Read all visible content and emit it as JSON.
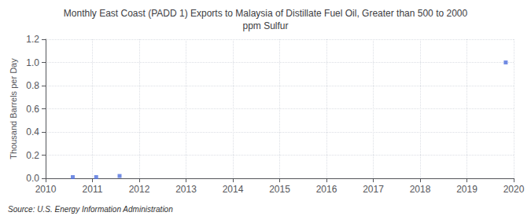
{
  "chart_data": {
    "type": "scatter",
    "title": "Monthly East Coast (PADD 1) Exports to Malaysia of Distillate Fuel Oil, Greater than 500 to 2000\nppm Sulfur",
    "ylabel": "Thousand Barrels per Day",
    "source": "Source: U.S. Energy Information Administration",
    "x": [
      2010.58,
      2011.08,
      2011.58,
      2019.83
    ],
    "values": [
      0.01,
      0.01,
      0.02,
      1.0
    ],
    "marker": "square",
    "xlim": [
      2010,
      2020
    ],
    "ylim": [
      0.0,
      1.2
    ],
    "xticks": [
      2010,
      2011,
      2012,
      2013,
      2014,
      2015,
      2016,
      2017,
      2018,
      2019,
      2020
    ],
    "yticks": [
      {
        "value": 0.0,
        "label": "0.0"
      },
      0.2,
      0.4,
      0.6,
      0.8,
      {
        "value": 1.0,
        "label": "1.0"
      },
      1.2
    ],
    "grid": true
  }
}
